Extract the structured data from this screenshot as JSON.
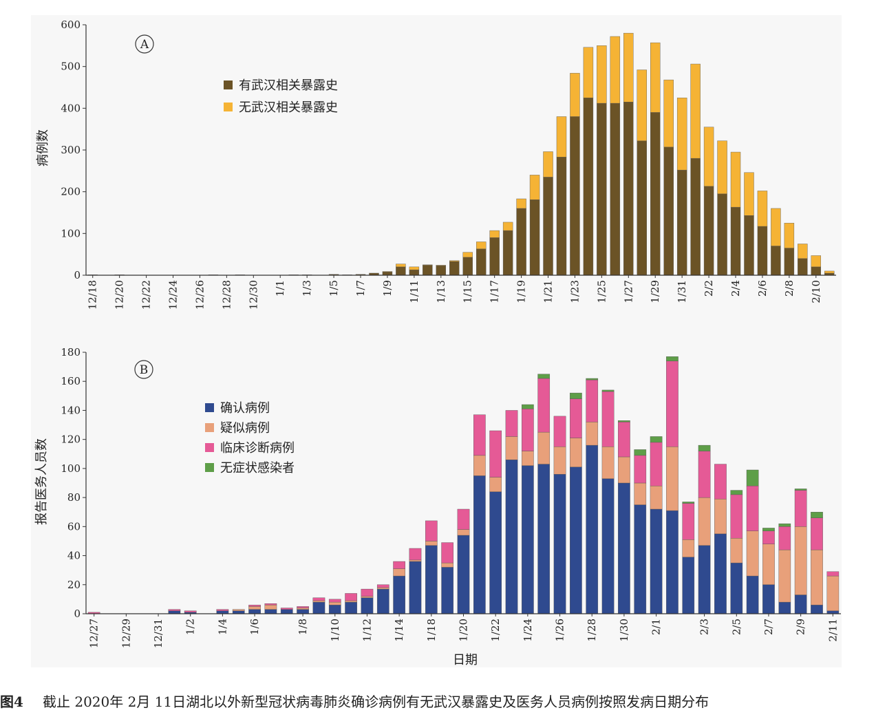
{
  "chart_data": [
    {
      "type": "bar",
      "stacked": true,
      "label": "A",
      "ylabel": "病例数",
      "categories": [
        "12/18",
        null,
        "12/20",
        null,
        "12/22",
        null,
        "12/24",
        null,
        "12/26",
        null,
        "12/28",
        null,
        "12/30",
        null,
        "1/1",
        null,
        "1/3",
        null,
        "1/5",
        null,
        "1/7",
        null,
        "1/9",
        null,
        "1/11",
        null,
        "1/13",
        null,
        "1/15",
        null,
        "1/17",
        null,
        "1/19",
        null,
        "1/21",
        null,
        "1/23",
        null,
        "1/25",
        null,
        "1/27",
        null,
        "1/29",
        null,
        "1/31",
        null,
        "2/2",
        null,
        "2/4",
        null,
        "2/6",
        null,
        "2/8",
        null,
        "2/10",
        null
      ],
      "series": [
        {
          "name": "有武汉相关暴露史",
          "color": "#6b5326",
          "values": [
            1,
            0,
            1,
            0,
            0,
            0,
            0,
            0,
            0,
            1,
            0,
            1,
            0,
            0,
            0,
            1,
            1,
            0,
            2,
            1,
            2,
            5,
            8,
            20,
            13,
            24,
            23,
            33,
            43,
            63,
            90,
            107,
            160,
            181,
            235,
            283,
            380,
            425,
            412,
            412,
            415,
            322,
            390,
            307,
            252,
            280,
            213,
            195,
            163,
            143,
            117,
            70,
            65,
            40,
            20,
            5
          ]
        },
        {
          "name": "无武汉相关暴露史",
          "color": "#f5b335",
          "values": [
            0,
            0,
            0,
            0,
            0,
            0,
            0,
            0,
            0,
            0,
            0,
            0,
            0,
            0,
            0,
            0,
            0,
            0,
            0,
            0,
            0,
            0,
            1,
            7,
            7,
            1,
            1,
            2,
            12,
            17,
            17,
            20,
            23,
            59,
            61,
            97,
            104,
            121,
            138,
            160,
            165,
            170,
            167,
            161,
            173,
            226,
            142,
            127,
            132,
            103,
            85,
            90,
            60,
            35,
            27,
            5
          ]
        }
      ],
      "ylim": [
        0,
        600
      ],
      "yticks": [
        0,
        100,
        200,
        300,
        400,
        500,
        600
      ]
    },
    {
      "type": "bar",
      "stacked": true,
      "label": "B",
      "ylabel": "报告医务人员数",
      "xlabel": "日期",
      "categories": [
        "12/27",
        null,
        "12/29",
        null,
        "12/31",
        null,
        "1/2",
        null,
        "1/4",
        null,
        "1/6",
        null,
        null,
        "1/8",
        null,
        "1/10",
        null,
        "1/12",
        null,
        "1/14",
        null,
        "1/18",
        null,
        "1/20",
        null,
        "1/22",
        null,
        "1/24",
        null,
        "1/26",
        null,
        "1/28",
        null,
        "1/30",
        null,
        "2/1",
        null,
        null,
        "2/3",
        null,
        "2/5",
        null,
        "2/7",
        null,
        "2/9",
        null,
        "2/11"
      ],
      "series": [
        {
          "name": "确认病例",
          "color": "#2f4a8f",
          "values": [
            0,
            0,
            0,
            0,
            0,
            2,
            1,
            0,
            2,
            2,
            3,
            3,
            3,
            3,
            8,
            6,
            8,
            11,
            17,
            26,
            36,
            47,
            32,
            54,
            95,
            84,
            106,
            102,
            103,
            96,
            101,
            116,
            93,
            90,
            75,
            72,
            71,
            39,
            47,
            55,
            35,
            26,
            20,
            8,
            13,
            6,
            2
          ]
        },
        {
          "name": "疑似病例",
          "color": "#e8a07a",
          "values": [
            0,
            0,
            0,
            0,
            0,
            0,
            0,
            0,
            0,
            1,
            2,
            3,
            0,
            1,
            1,
            2,
            1,
            1,
            1,
            5,
            1,
            3,
            3,
            4,
            14,
            10,
            16,
            10,
            22,
            19,
            20,
            16,
            22,
            18,
            15,
            16,
            44,
            12,
            33,
            24,
            17,
            31,
            28,
            36,
            47,
            38,
            24
          ]
        },
        {
          "name": "临床诊断病例",
          "color": "#e55a96",
          "values": [
            1,
            0,
            0,
            0,
            0,
            1,
            1,
            0,
            1,
            0,
            1,
            1,
            1,
            1,
            2,
            2,
            5,
            5,
            2,
            5,
            8,
            14,
            14,
            14,
            28,
            32,
            18,
            29,
            37,
            21,
            27,
            29,
            38,
            24,
            19,
            30,
            59,
            25,
            32,
            24,
            30,
            31,
            9,
            16,
            25,
            22,
            3
          ]
        },
        {
          "name": "无症状感染者",
          "color": "#5e9e48",
          "values": [
            0,
            0,
            0,
            0,
            0,
            0,
            0,
            0,
            0,
            0,
            0,
            0,
            0,
            0,
            0,
            0,
            0,
            0,
            0,
            0,
            0,
            0,
            0,
            0,
            0,
            0,
            0,
            3,
            3,
            0,
            4,
            1,
            1,
            1,
            4,
            4,
            3,
            1,
            4,
            0,
            3,
            11,
            2,
            2,
            1,
            4,
            0
          ]
        }
      ],
      "ylim": [
        0,
        180
      ],
      "yticks": [
        0,
        20,
        40,
        60,
        80,
        100,
        120,
        140,
        160,
        180
      ]
    }
  ],
  "caption": {
    "label": "图4",
    "text": "截止 2020年 2月 11日湖北以外新型冠状病毒肺炎确诊病例有无武汉暴露史及医务人员病例按照发病日期分布"
  }
}
